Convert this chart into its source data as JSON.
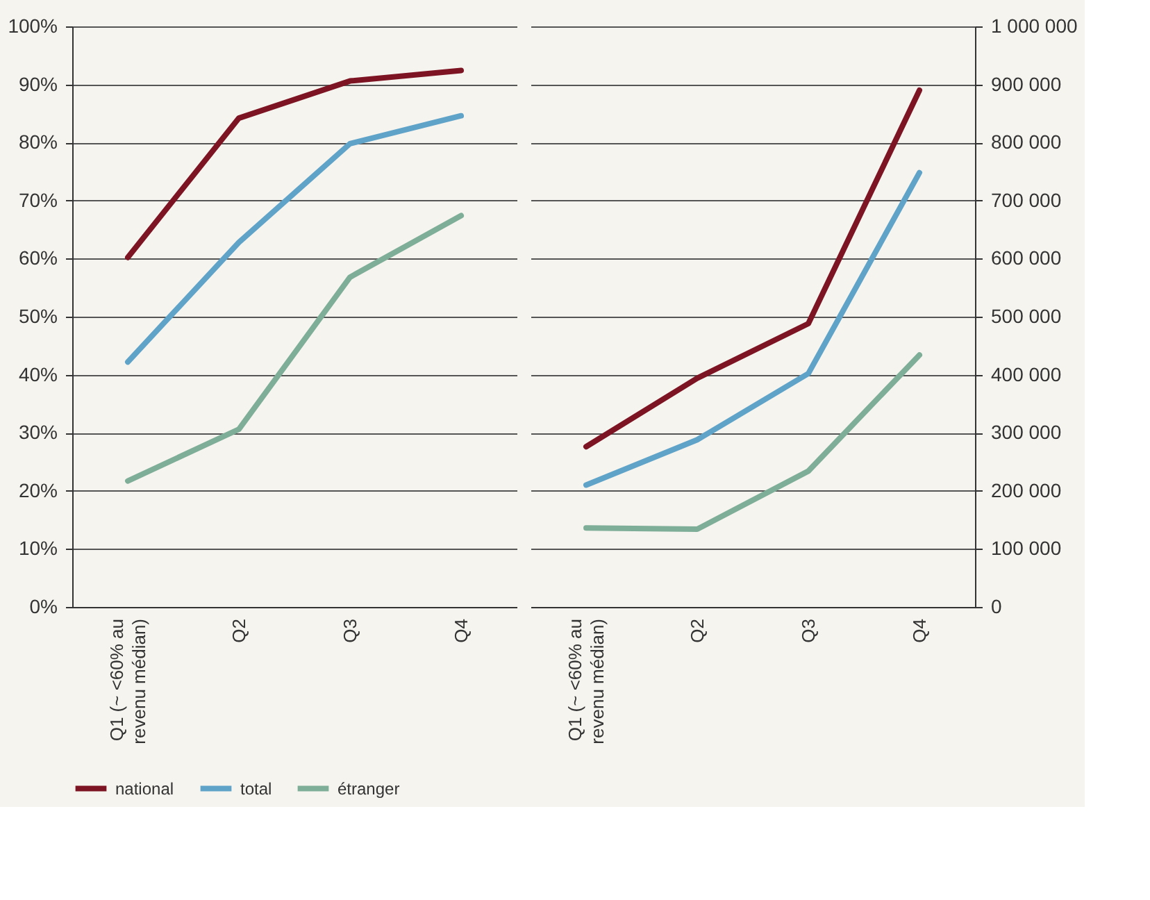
{
  "chart_data": [
    {
      "type": "line",
      "categories": [
        "Q1 (~ <60% au revenu médian)",
        "Q2",
        "Q3",
        "Q4"
      ],
      "ylim": [
        0,
        100
      ],
      "yticks": [
        {
          "value": 0,
          "label": "0%"
        },
        {
          "value": 10,
          "label": "10%"
        },
        {
          "value": 20,
          "label": "20%"
        },
        {
          "value": 30,
          "label": "30%"
        },
        {
          "value": 40,
          "label": "40%"
        },
        {
          "value": 50,
          "label": "50%"
        },
        {
          "value": 60,
          "label": "60%"
        },
        {
          "value": 70,
          "label": "70%"
        },
        {
          "value": 80,
          "label": "80%"
        },
        {
          "value": 90,
          "label": "90%"
        },
        {
          "value": 100,
          "label": "100%"
        }
      ],
      "grid": "y",
      "legend": "bottom",
      "marker": "none",
      "series": [
        {
          "name": "national",
          "color": "#7d1423",
          "values": [
            60.2,
            84.2,
            90.6,
            92.4
          ]
        },
        {
          "name": "total",
          "color": "#5fa3c9",
          "values": [
            42.2,
            62.8,
            79.8,
            84.6
          ]
        },
        {
          "name": "étranger",
          "color": "#7fae98",
          "values": [
            21.7,
            30.6,
            56.8,
            67.4
          ]
        }
      ]
    },
    {
      "type": "line",
      "categories": [
        "Q1 (~ <60% au revenu médian)",
        "Q2",
        "Q3",
        "Q4"
      ],
      "ylim": [
        0,
        1000000
      ],
      "yticks": [
        {
          "value": 0,
          "label": "0"
        },
        {
          "value": 100000,
          "label": "100 000"
        },
        {
          "value": 200000,
          "label": "200 000"
        },
        {
          "value": 300000,
          "label": "300 000"
        },
        {
          "value": 400000,
          "label": "400 000"
        },
        {
          "value": 500000,
          "label": "500 000"
        },
        {
          "value": 600000,
          "label": "600 000"
        },
        {
          "value": 700000,
          "label": "700 000"
        },
        {
          "value": 800000,
          "label": "800 000"
        },
        {
          "value": 900000,
          "label": "900 000"
        },
        {
          "value": 1000000,
          "label": "1 000 000"
        }
      ],
      "grid": "y",
      "legend": "bottom",
      "marker": "none",
      "series": [
        {
          "name": "national",
          "color": "#7d1423",
          "values": [
            276000,
            394000,
            488000,
            890000
          ]
        },
        {
          "name": "total",
          "color": "#5fa3c9",
          "values": [
            210000,
            288000,
            402000,
            748000
          ]
        },
        {
          "name": "étranger",
          "color": "#7fae98",
          "values": [
            136000,
            134000,
            234000,
            434000
          ]
        }
      ]
    }
  ]
}
